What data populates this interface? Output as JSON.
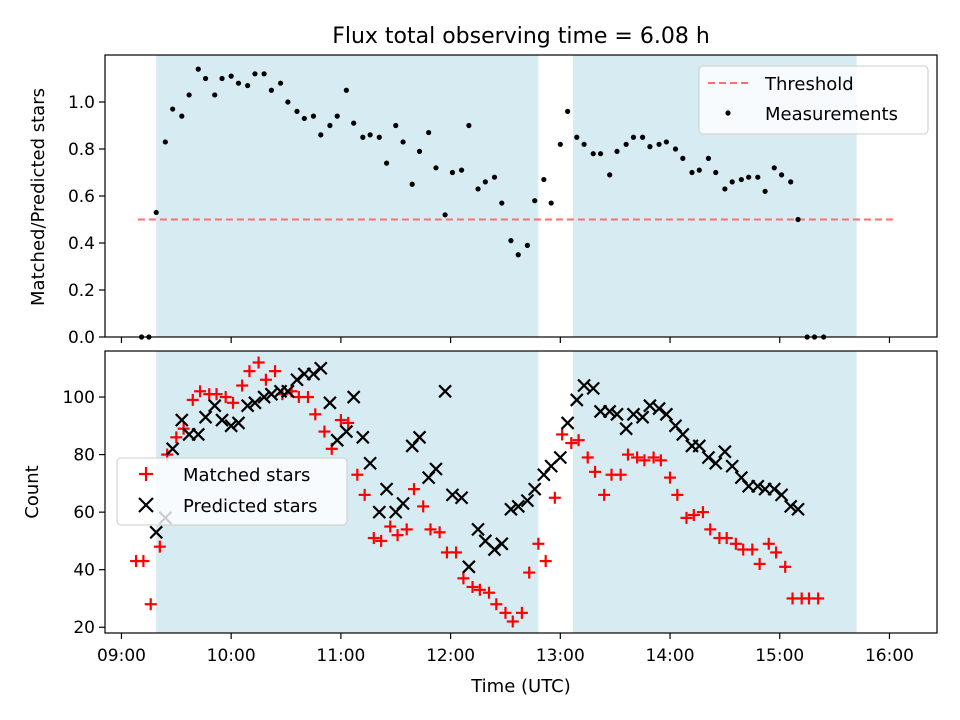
{
  "title": "Flux total observing time = 6.08 h",
  "colors": {
    "span_fill": "#add8e6",
    "threshold": "#ff6f6f",
    "measurements": "#000000",
    "matched": "#ff0000",
    "predicted": "#000000"
  },
  "chart_data": [
    {
      "type": "scatter",
      "ylabel": "Matched/Predicted stars",
      "ylim": [
        0.0,
        1.2
      ],
      "yticks": [
        0.0,
        0.2,
        0.4,
        0.6,
        0.8,
        1.0
      ],
      "ytick_labels": [
        "0.0",
        "0.2",
        "0.4",
        "0.6",
        "0.8",
        "1.0"
      ],
      "xlim": [
        "08:51",
        "16:26"
      ],
      "xticks": [
        "09:00",
        "10:00",
        "11:00",
        "12:00",
        "13:00",
        "14:00",
        "15:00",
        "16:00"
      ],
      "shaded_spans": [
        [
          "09:19",
          "12:48"
        ],
        [
          "13:07",
          "15:42"
        ]
      ],
      "legend_position": "top-right",
      "threshold": {
        "name": "Threshold",
        "y": 0.5,
        "x_range": [
          "09:09",
          "16:04"
        ]
      },
      "series": [
        {
          "name": "Measurements",
          "style": "dot",
          "points": [
            [
              "09:11",
              0.0
            ],
            [
              "09:15",
              0.0
            ],
            [
              "09:19",
              0.53
            ],
            [
              "09:24",
              0.83
            ],
            [
              "09:28",
              0.97
            ],
            [
              "09:33",
              0.94
            ],
            [
              "09:37",
              1.03
            ],
            [
              "09:42",
              1.14
            ],
            [
              "09:46",
              1.1
            ],
            [
              "09:51",
              1.03
            ],
            [
              "09:55",
              1.1
            ],
            [
              "10:00",
              1.11
            ],
            [
              "10:04",
              1.08
            ],
            [
              "10:09",
              1.07
            ],
            [
              "10:13",
              1.12
            ],
            [
              "10:18",
              1.12
            ],
            [
              "10:22",
              1.05
            ],
            [
              "10:27",
              1.08
            ],
            [
              "10:31",
              1.0
            ],
            [
              "10:36",
              0.96
            ],
            [
              "10:40",
              0.93
            ],
            [
              "10:45",
              0.94
            ],
            [
              "10:49",
              0.86
            ],
            [
              "10:54",
              0.9
            ],
            [
              "10:58",
              0.94
            ],
            [
              "11:03",
              1.05
            ],
            [
              "11:07",
              0.91
            ],
            [
              "11:12",
              0.85
            ],
            [
              "11:16",
              0.86
            ],
            [
              "11:21",
              0.85
            ],
            [
              "11:25",
              0.74
            ],
            [
              "11:30",
              0.9
            ],
            [
              "11:34",
              0.83
            ],
            [
              "11:39",
              0.65
            ],
            [
              "11:43",
              0.79
            ],
            [
              "11:48",
              0.87
            ],
            [
              "11:52",
              0.72
            ],
            [
              "11:57",
              0.52
            ],
            [
              "12:01",
              0.7
            ],
            [
              "12:06",
              0.71
            ],
            [
              "12:10",
              0.9
            ],
            [
              "12:15",
              0.63
            ],
            [
              "12:19",
              0.66
            ],
            [
              "12:24",
              0.68
            ],
            [
              "12:28",
              0.57
            ],
            [
              "12:33",
              0.41
            ],
            [
              "12:37",
              0.35
            ],
            [
              "12:42",
              0.39
            ],
            [
              "12:46",
              0.58
            ],
            [
              "12:51",
              0.67
            ],
            [
              "12:55",
              0.57
            ],
            [
              "13:00",
              0.82
            ],
            [
              "13:04",
              0.96
            ],
            [
              "13:09",
              0.85
            ],
            [
              "13:13",
              0.82
            ],
            [
              "13:18",
              0.78
            ],
            [
              "13:22",
              0.78
            ],
            [
              "13:27",
              0.69
            ],
            [
              "13:31",
              0.79
            ],
            [
              "13:36",
              0.82
            ],
            [
              "13:40",
              0.85
            ],
            [
              "13:45",
              0.85
            ],
            [
              "13:49",
              0.81
            ],
            [
              "13:54",
              0.82
            ],
            [
              "13:58",
              0.83
            ],
            [
              "14:03",
              0.8
            ],
            [
              "14:07",
              0.76
            ],
            [
              "14:12",
              0.7
            ],
            [
              "14:16",
              0.71
            ],
            [
              "14:21",
              0.76
            ],
            [
              "14:25",
              0.7
            ],
            [
              "14:30",
              0.63
            ],
            [
              "14:34",
              0.66
            ],
            [
              "14:39",
              0.67
            ],
            [
              "14:43",
              0.68
            ],
            [
              "14:48",
              0.68
            ],
            [
              "14:52",
              0.62
            ],
            [
              "14:57",
              0.72
            ],
            [
              "15:01",
              0.69
            ],
            [
              "15:06",
              0.66
            ],
            [
              "15:10",
              0.5
            ],
            [
              "15:15",
              0.0
            ],
            [
              "15:19",
              0.0
            ],
            [
              "15:24",
              0.0
            ]
          ]
        }
      ]
    },
    {
      "type": "scatter",
      "xlabel": "Time (UTC)",
      "ylabel": "Count",
      "ylim": [
        18,
        116
      ],
      "yticks": [
        20,
        40,
        60,
        80,
        100
      ],
      "ytick_labels": [
        "20",
        "40",
        "60",
        "80",
        "100"
      ],
      "xlim": [
        "08:51",
        "16:26"
      ],
      "xticks": [
        "09:00",
        "10:00",
        "11:00",
        "12:00",
        "13:00",
        "14:00",
        "15:00",
        "16:00"
      ],
      "xtick_labels": [
        "09:00",
        "10:00",
        "11:00",
        "12:00",
        "13:00",
        "14:00",
        "15:00",
        "16:00"
      ],
      "shaded_spans": [
        [
          "09:19",
          "12:48"
        ],
        [
          "13:07",
          "15:42"
        ]
      ],
      "legend_position": "center-left",
      "series": [
        {
          "name": "Matched stars",
          "style": "plus",
          "points": [
            [
              "09:08",
              43
            ],
            [
              "09:12",
              43
            ],
            [
              "09:16",
              28
            ],
            [
              "09:21",
              48
            ],
            [
              "09:25",
              80
            ],
            [
              "09:30",
              86
            ],
            [
              "09:34",
              89
            ],
            [
              "09:39",
              99
            ],
            [
              "09:43",
              102
            ],
            [
              "09:48",
              101
            ],
            [
              "09:52",
              101
            ],
            [
              "09:57",
              100
            ],
            [
              "10:01",
              98
            ],
            [
              "10:06",
              104
            ],
            [
              "10:10",
              109
            ],
            [
              "10:15",
              112
            ],
            [
              "10:19",
              106
            ],
            [
              "10:24",
              109
            ],
            [
              "10:28",
              101
            ],
            [
              "10:33",
              102
            ],
            [
              "10:37",
              100
            ],
            [
              "10:42",
              100
            ],
            [
              "10:46",
              94
            ],
            [
              "10:51",
              88
            ],
            [
              "10:55",
              82
            ],
            [
              "11:00",
              92
            ],
            [
              "11:04",
              91
            ],
            [
              "11:09",
              73
            ],
            [
              "11:13",
              66
            ],
            [
              "11:18",
              51
            ],
            [
              "11:22",
              50
            ],
            [
              "11:27",
              55
            ],
            [
              "11:31",
              52
            ],
            [
              "11:36",
              54
            ],
            [
              "11:40",
              68
            ],
            [
              "11:45",
              62
            ],
            [
              "11:49",
              54
            ],
            [
              "11:54",
              53
            ],
            [
              "11:58",
              46
            ],
            [
              "12:03",
              46
            ],
            [
              "12:07",
              37
            ],
            [
              "12:12",
              34
            ],
            [
              "12:16",
              33
            ],
            [
              "12:21",
              32
            ],
            [
              "12:25",
              28
            ],
            [
              "12:30",
              25
            ],
            [
              "12:34",
              22
            ],
            [
              "12:39",
              25
            ],
            [
              "12:43",
              39
            ],
            [
              "12:48",
              49
            ],
            [
              "12:52",
              43
            ],
            [
              "12:57",
              65
            ],
            [
              "13:01",
              87
            ],
            [
              "13:06",
              84
            ],
            [
              "13:10",
              85
            ],
            [
              "13:15",
              79
            ],
            [
              "13:19",
              74
            ],
            [
              "13:24",
              66
            ],
            [
              "13:28",
              73
            ],
            [
              "13:33",
              73
            ],
            [
              "13:37",
              80
            ],
            [
              "13:42",
              79
            ],
            [
              "13:46",
              78
            ],
            [
              "13:51",
              79
            ],
            [
              "13:55",
              78
            ],
            [
              "14:00",
              72
            ],
            [
              "14:04",
              66
            ],
            [
              "14:09",
              58
            ],
            [
              "14:13",
              59
            ],
            [
              "14:18",
              60
            ],
            [
              "14:22",
              54
            ],
            [
              "14:27",
              51
            ],
            [
              "14:31",
              51
            ],
            [
              "14:36",
              49
            ],
            [
              "14:40",
              47
            ],
            [
              "14:45",
              47
            ],
            [
              "14:49",
              42
            ],
            [
              "14:54",
              49
            ],
            [
              "14:58",
              46
            ],
            [
              "15:03",
              41
            ],
            [
              "15:07",
              30
            ],
            [
              "15:12",
              30
            ],
            [
              "15:16",
              30
            ],
            [
              "15:21",
              30
            ]
          ]
        },
        {
          "name": "Predicted stars",
          "style": "x",
          "points": [
            [
              "09:19",
              53
            ],
            [
              "09:24",
              58
            ],
            [
              "09:28",
              82
            ],
            [
              "09:33",
              92
            ],
            [
              "09:37",
              87
            ],
            [
              "09:42",
              87
            ],
            [
              "09:46",
              93
            ],
            [
              "09:51",
              97
            ],
            [
              "09:55",
              92
            ],
            [
              "10:00",
              90
            ],
            [
              "10:04",
              91
            ],
            [
              "10:09",
              97
            ],
            [
              "10:13",
              98
            ],
            [
              "10:18",
              100
            ],
            [
              "10:22",
              101
            ],
            [
              "10:27",
              102
            ],
            [
              "10:31",
              102
            ],
            [
              "10:36",
              106
            ],
            [
              "10:40",
              108
            ],
            [
              "10:45",
              108
            ],
            [
              "10:49",
              110
            ],
            [
              "10:54",
              98
            ],
            [
              "10:58",
              85
            ],
            [
              "11:03",
              88
            ],
            [
              "11:07",
              100
            ],
            [
              "11:12",
              86
            ],
            [
              "11:16",
              77
            ],
            [
              "11:21",
              60
            ],
            [
              "11:25",
              68
            ],
            [
              "11:30",
              60
            ],
            [
              "11:34",
              63
            ],
            [
              "11:39",
              83
            ],
            [
              "11:43",
              86
            ],
            [
              "11:48",
              72
            ],
            [
              "11:52",
              75
            ],
            [
              "11:57",
              102
            ],
            [
              "12:01",
              66
            ],
            [
              "12:06",
              65
            ],
            [
              "12:10",
              41
            ],
            [
              "12:15",
              54
            ],
            [
              "12:19",
              50
            ],
            [
              "12:24",
              47
            ],
            [
              "12:28",
              49
            ],
            [
              "12:33",
              61
            ],
            [
              "12:37",
              62
            ],
            [
              "12:42",
              64
            ],
            [
              "12:46",
              68
            ],
            [
              "12:51",
              73
            ],
            [
              "12:55",
              76
            ],
            [
              "13:00",
              79
            ],
            [
              "13:04",
              91
            ],
            [
              "13:09",
              99
            ],
            [
              "13:13",
              104
            ],
            [
              "13:18",
              103
            ],
            [
              "13:22",
              95
            ],
            [
              "13:27",
              95
            ],
            [
              "13:31",
              94
            ],
            [
              "13:36",
              89
            ],
            [
              "13:40",
              94
            ],
            [
              "13:45",
              93
            ],
            [
              "13:49",
              97
            ],
            [
              "13:54",
              96
            ],
            [
              "13:58",
              94
            ],
            [
              "14:03",
              90
            ],
            [
              "14:07",
              87
            ],
            [
              "14:12",
              83
            ],
            [
              "14:16",
              83
            ],
            [
              "14:21",
              79
            ],
            [
              "14:25",
              77
            ],
            [
              "14:30",
              81
            ],
            [
              "14:34",
              76
            ],
            [
              "14:39",
              72
            ],
            [
              "14:43",
              69
            ],
            [
              "14:48",
              69
            ],
            [
              "14:52",
              68
            ],
            [
              "14:57",
              68
            ],
            [
              "15:01",
              66
            ],
            [
              "15:06",
              62
            ],
            [
              "15:10",
              61
            ]
          ]
        }
      ]
    }
  ]
}
